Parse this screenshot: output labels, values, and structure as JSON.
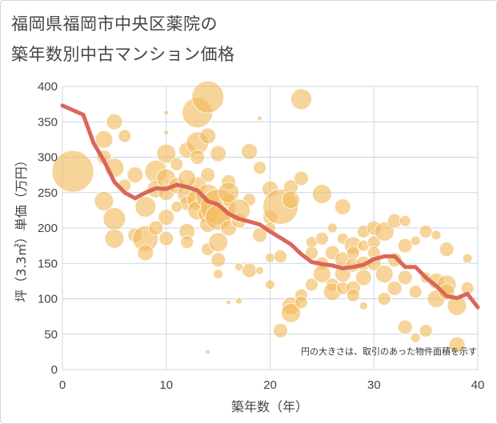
{
  "title_line1": "福岡県福岡市中央区薬院の",
  "title_line2": "築年数別中古マンション価格",
  "chart_data": {
    "type": "scatter",
    "xlabel": "築年数（年）",
    "ylabel": "坪（3.3㎡）単価（万円）",
    "xlim": [
      0,
      40
    ],
    "ylim": [
      0,
      400
    ],
    "x_ticks": [
      "0",
      "10",
      "20",
      "30",
      "40"
    ],
    "y_ticks": [
      "0",
      "50",
      "100",
      "150",
      "200",
      "250",
      "300",
      "350",
      "400"
    ],
    "grid": true,
    "annotation": "円の大きさは、取引のあった物件面積を示す",
    "colors": {
      "bubble": "#f2b95c",
      "line": "#d9675a",
      "grid": "#c9d7e6"
    },
    "bubbles": [
      [
        1,
        280,
        26
      ],
      [
        4,
        325,
        11
      ],
      [
        5,
        350,
        10
      ],
      [
        4,
        300,
        9
      ],
      [
        6,
        330,
        8
      ],
      [
        5,
        285,
        12
      ],
      [
        4,
        238,
        12
      ],
      [
        5,
        213,
        14
      ],
      [
        5,
        185,
        12
      ],
      [
        6,
        260,
        8
      ],
      [
        7,
        275,
        10
      ],
      [
        7,
        190,
        9
      ],
      [
        8,
        230,
        13
      ],
      [
        8,
        185,
        16
      ],
      [
        8,
        165,
        10
      ],
      [
        9,
        280,
        14
      ],
      [
        9,
        255,
        11
      ],
      [
        9,
        200,
        9
      ],
      [
        10,
        305,
        12
      ],
      [
        10,
        270,
        12
      ],
      [
        10,
        250,
        10
      ],
      [
        10,
        215,
        10
      ],
      [
        10,
        185,
        9
      ],
      [
        10,
        335,
        3
      ],
      [
        10,
        363,
        3
      ],
      [
        11,
        290,
        8
      ],
      [
        11,
        260,
        10
      ],
      [
        12,
        248,
        12
      ],
      [
        12,
        235,
        9
      ],
      [
        12,
        310,
        10
      ],
      [
        12,
        195,
        10
      ],
      [
        12,
        180,
        8
      ],
      [
        13,
        363,
        19
      ],
      [
        13,
        320,
        14
      ],
      [
        13,
        300,
        9
      ],
      [
        13,
        260,
        11
      ],
      [
        13,
        240,
        13
      ],
      [
        13,
        225,
        12
      ],
      [
        14,
        385,
        20
      ],
      [
        14,
        330,
        10
      ],
      [
        14,
        275,
        9
      ],
      [
        14,
        245,
        15
      ],
      [
        14,
        220,
        12
      ],
      [
        14,
        205,
        10
      ],
      [
        14,
        170,
        8
      ],
      [
        15,
        305,
        10
      ],
      [
        15,
        230,
        22
      ],
      [
        15,
        215,
        16
      ],
      [
        15,
        180,
        12
      ],
      [
        15,
        155,
        9
      ],
      [
        15,
        135,
        6
      ],
      [
        16,
        265,
        9
      ],
      [
        16,
        240,
        8
      ],
      [
        16,
        200,
        10
      ],
      [
        16,
        95,
        3
      ],
      [
        17,
        210,
        9
      ],
      [
        17,
        145,
        5
      ],
      [
        17,
        97,
        4
      ],
      [
        18,
        308,
        10
      ],
      [
        18,
        240,
        8
      ],
      [
        18,
        140,
        9
      ],
      [
        19,
        285,
        8
      ],
      [
        19,
        190,
        9
      ],
      [
        19,
        140,
        5
      ],
      [
        20,
        255,
        10
      ],
      [
        20,
        215,
        9
      ],
      [
        20,
        200,
        7
      ],
      [
        20,
        158,
        6
      ],
      [
        20,
        120,
        6
      ],
      [
        21,
        230,
        22
      ],
      [
        21,
        160,
        8
      ],
      [
        21,
        55,
        9
      ],
      [
        22,
        258,
        9
      ],
      [
        22,
        240,
        11
      ],
      [
        22,
        90,
        11
      ],
      [
        22,
        80,
        12
      ],
      [
        23,
        382,
        13
      ],
      [
        23,
        270,
        9
      ],
      [
        23,
        105,
        8
      ],
      [
        23,
        95,
        8
      ],
      [
        24,
        180,
        7
      ],
      [
        24,
        165,
        8
      ],
      [
        24,
        120,
        8
      ],
      [
        25,
        248,
        12
      ],
      [
        25,
        185,
        8
      ],
      [
        25,
        150,
        8
      ],
      [
        25,
        135,
        11
      ],
      [
        26,
        165,
        9
      ],
      [
        26,
        120,
        8
      ],
      [
        26,
        110,
        11
      ],
      [
        27,
        230,
        10
      ],
      [
        27,
        185,
        7
      ],
      [
        27,
        155,
        10
      ],
      [
        27,
        135,
        10
      ],
      [
        27,
        115,
        8
      ],
      [
        28,
        175,
        11
      ],
      [
        28,
        165,
        8
      ],
      [
        28,
        148,
        9
      ],
      [
        28,
        115,
        9
      ],
      [
        28,
        105,
        8
      ],
      [
        29,
        195,
        8
      ],
      [
        29,
        175,
        7
      ],
      [
        29,
        150,
        9
      ],
      [
        29,
        130,
        10
      ],
      [
        29,
        90,
        5
      ],
      [
        30,
        200,
        9
      ],
      [
        30,
        180,
        8
      ],
      [
        30,
        165,
        8
      ],
      [
        30,
        150,
        9
      ],
      [
        31,
        195,
        12
      ],
      [
        31,
        135,
        11
      ],
      [
        31,
        100,
        8
      ],
      [
        32,
        210,
        9
      ],
      [
        32,
        155,
        9
      ],
      [
        32,
        115,
        9
      ],
      [
        33,
        210,
        7
      ],
      [
        33,
        175,
        9
      ],
      [
        33,
        130,
        9
      ],
      [
        33,
        60,
        9
      ],
      [
        34,
        182,
        6
      ],
      [
        34,
        45,
        6
      ],
      [
        35,
        195,
        8
      ],
      [
        35,
        130,
        7
      ],
      [
        35,
        55,
        8
      ],
      [
        36,
        190,
        6
      ],
      [
        36,
        125,
        10
      ],
      [
        36,
        100,
        11
      ],
      [
        37,
        170,
        9
      ],
      [
        37,
        120,
        12
      ],
      [
        37,
        110,
        10
      ],
      [
        38,
        90,
        12
      ],
      [
        38,
        35,
        10
      ],
      [
        39,
        115,
        8
      ],
      [
        39,
        157,
        6
      ],
      [
        16,
        250,
        13
      ],
      [
        17,
        225,
        14
      ],
      [
        11,
        230,
        7
      ],
      [
        12,
        270,
        11
      ],
      [
        19,
        355,
        3
      ],
      [
        26,
        200,
        6
      ],
      [
        34,
        110,
        8
      ],
      [
        14,
        25,
        3
      ]
    ],
    "trend": {
      "x": [
        0,
        2,
        3,
        4,
        5,
        6,
        7,
        8,
        9,
        10,
        11,
        12,
        13,
        14,
        15,
        16,
        17,
        18,
        19,
        20,
        21,
        22,
        23,
        24,
        25,
        26,
        27,
        28,
        29,
        30,
        31,
        32,
        33,
        34,
        35,
        36,
        37,
        38,
        39,
        40
      ],
      "y": [
        373,
        360,
        320,
        295,
        265,
        250,
        242,
        250,
        256,
        255,
        261,
        258,
        253,
        238,
        233,
        220,
        213,
        209,
        205,
        195,
        186,
        177,
        163,
        152,
        149,
        147,
        143,
        145,
        148,
        156,
        160,
        160,
        145,
        145,
        130,
        118,
        104,
        101,
        107,
        88
      ]
    }
  }
}
